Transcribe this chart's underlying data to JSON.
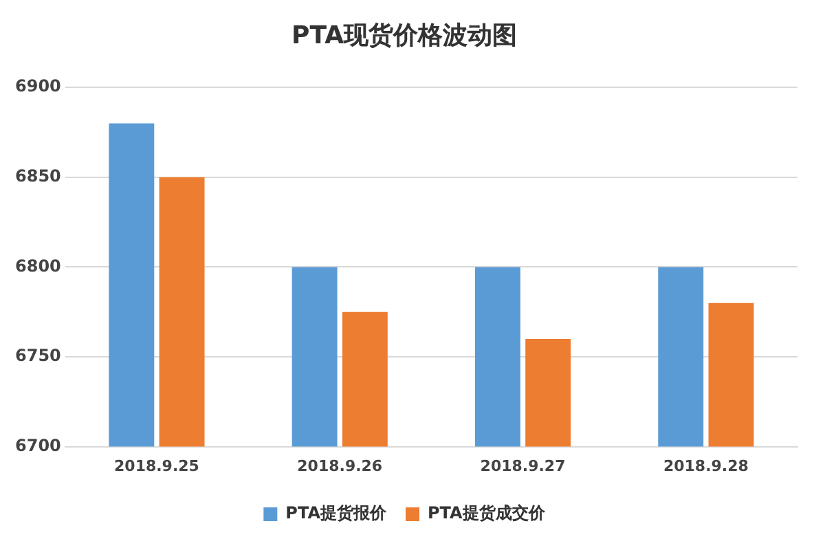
{
  "chart_data": {
    "type": "bar",
    "title": "PTA现货价格波动图",
    "categories": [
      "2018.9.25",
      "2018.9.26",
      "2018.9.27",
      "2018.9.28"
    ],
    "series": [
      {
        "name": "PTA提货报价",
        "color": "#5b9bd5",
        "values": [
          6880,
          6800,
          6800,
          6800
        ]
      },
      {
        "name": "PTA提货成交价",
        "color": "#ed7d31",
        "values": [
          6850,
          6775,
          6760,
          6780
        ]
      }
    ],
    "ylim": [
      6700,
      6900
    ],
    "yticks": [
      6700,
      6750,
      6800,
      6850,
      6900
    ],
    "grid": "y",
    "legend": "bottom"
  }
}
